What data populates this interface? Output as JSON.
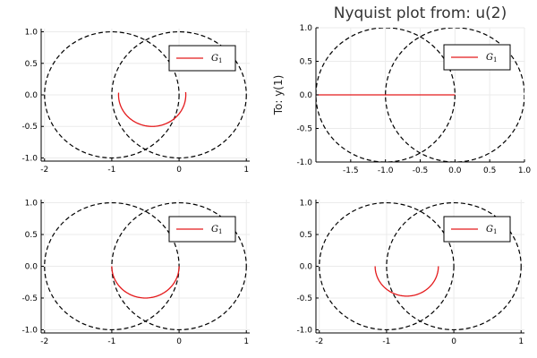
{
  "chart_data": [
    {
      "type": "line",
      "title": "",
      "ylabel": "",
      "xlim": [
        -2.05,
        1.05
      ],
      "ylim": [
        -1.05,
        1.05
      ],
      "xticks": [
        "-2",
        "-1",
        "0",
        "1"
      ],
      "xtick_values": [
        -2,
        -1,
        0,
        1
      ],
      "yticks": [
        "1.0",
        "0.5",
        "0.0",
        "-0.5",
        "-1.0"
      ],
      "ytick_values": [
        1.0,
        0.5,
        0.0,
        -0.5,
        -1.0
      ],
      "legend": {
        "position": "top-right",
        "entries": [
          "G1"
        ]
      },
      "circles": [
        {
          "cx": -1,
          "cy": 0,
          "r": 1
        },
        {
          "cx": 0,
          "cy": 0,
          "r": 1
        }
      ],
      "series": [
        {
          "name": "G1",
          "color": "#e41a1c",
          "arc": {
            "cx": -0.4,
            "cy": 0,
            "r": 0.5,
            "theta_start": 176,
            "theta_end": 365
          }
        }
      ],
      "grid": true
    },
    {
      "type": "line",
      "title": "Nyquist plot from: u(2)",
      "ylabel": "To: y(1)",
      "xlim": [
        -2.0,
        1.0
      ],
      "ylim": [
        -1.0,
        1.0
      ],
      "xticks": [
        "-1.5",
        "-1.0",
        "-0.5",
        "0.0",
        "0.5",
        "1.0"
      ],
      "xtick_values": [
        -1.5,
        -1.0,
        -0.5,
        0.0,
        0.5,
        1.0
      ],
      "yticks": [
        "1.0",
        "0.5",
        "0.0",
        "-0.5",
        "-1.0"
      ],
      "ytick_values": [
        1.0,
        0.5,
        0.0,
        -0.5,
        -1.0
      ],
      "legend": {
        "position": "top-right",
        "entries": [
          "G1"
        ]
      },
      "circles": [
        {
          "cx": -1,
          "cy": 0,
          "r": 1
        },
        {
          "cx": 0,
          "cy": 0,
          "r": 1
        }
      ],
      "series": [
        {
          "name": "G1",
          "color": "#e41a1c",
          "segment": {
            "x": [
              -2.0,
              0.0
            ],
            "y": [
              0.0,
              0.0
            ]
          }
        }
      ],
      "grid": true
    },
    {
      "type": "line",
      "title": "",
      "ylabel": "",
      "xlim": [
        -2.05,
        1.05
      ],
      "ylim": [
        -1.05,
        1.05
      ],
      "xticks": [
        "-2",
        "-1",
        "0",
        "1"
      ],
      "xtick_values": [
        -2,
        -1,
        0,
        1
      ],
      "yticks": [
        "1.0",
        "0.5",
        "0.0",
        "-0.5",
        "-1.0"
      ],
      "ytick_values": [
        1.0,
        0.5,
        0.0,
        -0.5,
        -1.0
      ],
      "legend": {
        "position": "top-right",
        "entries": [
          "G1"
        ]
      },
      "circles": [
        {
          "cx": -1,
          "cy": 0,
          "r": 1
        },
        {
          "cx": 0,
          "cy": 0,
          "r": 1
        }
      ],
      "series": [
        {
          "name": "G1",
          "color": "#e41a1c",
          "arc": {
            "cx": -0.5,
            "cy": 0,
            "r": 0.5,
            "theta_start": 180,
            "theta_end": 360
          }
        }
      ],
      "grid": true
    },
    {
      "type": "line",
      "title": "",
      "ylabel": "",
      "xlim": [
        -2.05,
        1.05
      ],
      "ylim": [
        -1.05,
        1.05
      ],
      "xticks": [
        "-2",
        "-1",
        "0",
        "1"
      ],
      "xtick_values": [
        -2,
        -1,
        0,
        1
      ],
      "yticks": [
        "1.0",
        "0.5",
        "0.0",
        "-0.5",
        "-1.0"
      ],
      "ytick_values": [
        1.0,
        0.5,
        0.0,
        -0.5,
        -1.0
      ],
      "legend": {
        "position": "top-right",
        "entries": [
          "G1"
        ]
      },
      "circles": [
        {
          "cx": -1,
          "cy": 0,
          "r": 1
        },
        {
          "cx": 0,
          "cy": 0,
          "r": 1
        }
      ],
      "series": [
        {
          "name": "G1",
          "color": "#e41a1c",
          "arc": {
            "cx": -0.7,
            "cy": 0,
            "r": 0.47,
            "theta_start": 180,
            "theta_end": 360
          }
        }
      ],
      "grid": true
    }
  ]
}
